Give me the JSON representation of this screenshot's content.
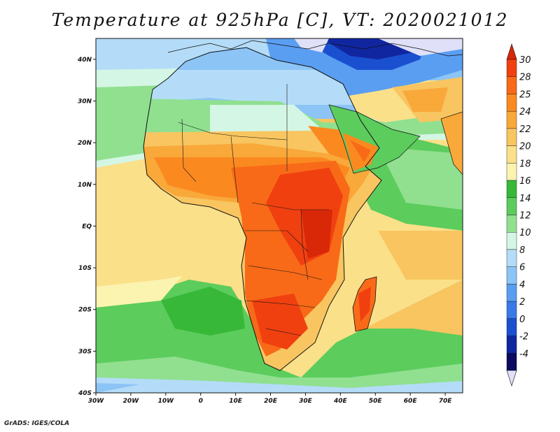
{
  "title": "Temperature at 925hPa [C], VT: 2020021012",
  "credit": "GrADS: IGES/COLA",
  "map": {
    "lon_range": [
      -30,
      75
    ],
    "lat_range": [
      -40,
      45
    ],
    "x_ticks": [
      {
        "lon": -30,
        "label": "30W"
      },
      {
        "lon": -20,
        "label": "20W"
      },
      {
        "lon": -10,
        "label": "10W"
      },
      {
        "lon": 0,
        "label": "0"
      },
      {
        "lon": 10,
        "label": "10E"
      },
      {
        "lon": 20,
        "label": "20E"
      },
      {
        "lon": 30,
        "label": "30E"
      },
      {
        "lon": 40,
        "label": "40E"
      },
      {
        "lon": 50,
        "label": "50E"
      },
      {
        "lon": 60,
        "label": "60E"
      },
      {
        "lon": 70,
        "label": "70E"
      }
    ],
    "y_ticks": [
      {
        "lat": 40,
        "label": "40N"
      },
      {
        "lat": 30,
        "label": "30N"
      },
      {
        "lat": 20,
        "label": "20N"
      },
      {
        "lat": 10,
        "label": "10N"
      },
      {
        "lat": 0,
        "label": "EQ"
      },
      {
        "lat": -10,
        "label": "10S"
      },
      {
        "lat": -20,
        "label": "20S"
      },
      {
        "lat": -30,
        "label": "30S"
      },
      {
        "lat": -40,
        "label": "40S"
      }
    ]
  },
  "colorbar": {
    "levels": [
      "30",
      "28",
      "25",
      "24",
      "22",
      "20",
      "18",
      "16",
      "14",
      "12",
      "10",
      "8",
      "6",
      "4",
      "2",
      "0",
      "-2",
      "-4"
    ],
    "colors": [
      "#f04010",
      "#f86a18",
      "#fa8a20",
      "#f9a83a",
      "#f8c560",
      "#fbe08a",
      "#fbf4b0",
      "#38b838",
      "#5ccc5c",
      "#90e090",
      "#d4f6e4",
      "#b4dcf8",
      "#8cc4f6",
      "#5a9ef2",
      "#3a7ae8",
      "#1a50d0",
      "#1026a0",
      "#0a0a60"
    ],
    "top_color": "#d82808",
    "bottom_color": "#e0e0f8"
  }
}
